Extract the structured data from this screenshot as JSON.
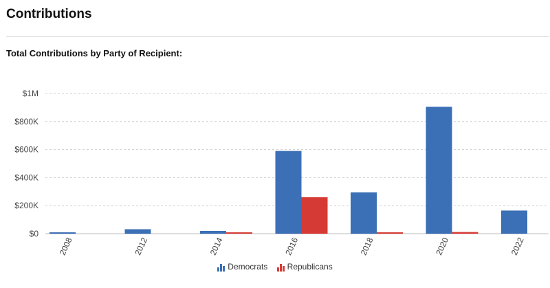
{
  "page": {
    "section_title": "Contributions",
    "chart_heading": "Total Contributions by Party of Recipient:"
  },
  "colors": {
    "democrats": "#3b6fb6",
    "republicans": "#d63a34",
    "grid": "#cfcfcf",
    "axis_text": "#444444"
  },
  "chart_data": {
    "type": "bar",
    "title": "Total Contributions by Party of Recipient:",
    "xlabel": "",
    "ylabel": "",
    "categories": [
      "2008",
      "2012",
      "2014",
      "2016",
      "2018",
      "2020",
      "2022"
    ],
    "series": [
      {
        "name": "Democrats",
        "values": [
          3000,
          32000,
          20000,
          590000,
          295000,
          905000,
          165000
        ]
      },
      {
        "name": "Republicans",
        "values": [
          0,
          0,
          3000,
          260000,
          10000,
          12000,
          0
        ]
      }
    ],
    "ylim": [
      0,
      1000000
    ],
    "yticks": [
      0,
      200000,
      400000,
      600000,
      800000,
      1000000
    ],
    "ytick_labels": [
      "$0",
      "$200K",
      "$400K",
      "$600K",
      "$800K",
      "$1M"
    ],
    "grid": true,
    "legend_position": "bottom-center"
  }
}
